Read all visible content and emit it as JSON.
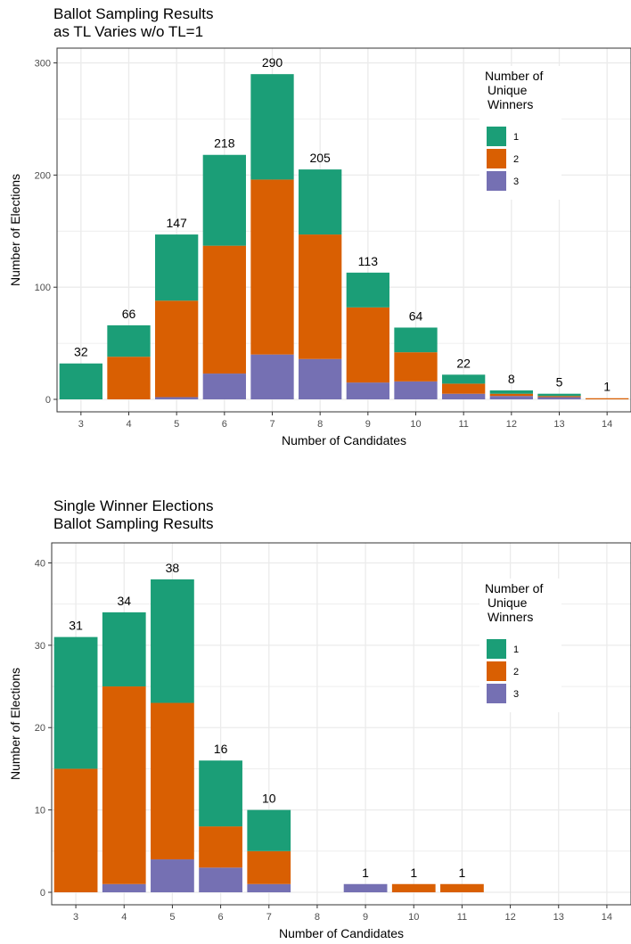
{
  "colors": {
    "series_1": "#1b9e77",
    "series_2": "#d95f02",
    "series_3": "#7570b3",
    "grid": "#ebebeb",
    "panel_border": "#333333"
  },
  "chart_data": [
    {
      "type": "bar",
      "stacked": true,
      "title": [
        "Ballot Sampling Results",
        "as TL Varies w/o TL=1"
      ],
      "xlabel": "Number of Candidates",
      "ylabel": "Number of Elections",
      "categories": [
        "3",
        "4",
        "5",
        "6",
        "7",
        "8",
        "9",
        "10",
        "11",
        "12",
        "13",
        "14"
      ],
      "ylim": [
        0,
        310
      ],
      "yticks": [
        0,
        100,
        200,
        300
      ],
      "grid": true,
      "legend": {
        "title": [
          "Number of",
          "Unique",
          "Winners"
        ],
        "placement": "right"
      },
      "series": [
        {
          "name": "1",
          "color": "#1b9e77",
          "values": [
            32,
            28,
            59,
            81,
            94,
            58,
            31,
            22,
            8,
            3,
            2,
            0
          ]
        },
        {
          "name": "2",
          "color": "#d95f02",
          "values": [
            0,
            38,
            86,
            114,
            156,
            111,
            67,
            26,
            9,
            2,
            1,
            1
          ]
        },
        {
          "name": "3",
          "color": "#7570b3",
          "values": [
            0,
            0,
            2,
            23,
            40,
            36,
            15,
            16,
            5,
            3,
            2,
            0
          ]
        }
      ],
      "totals": [
        32,
        66,
        147,
        218,
        290,
        205,
        113,
        64,
        22,
        8,
        5,
        1
      ]
    },
    {
      "type": "bar",
      "stacked": true,
      "title": [
        "Single Winner Elections",
        "Ballot Sampling Results"
      ],
      "xlabel": "Number of Candidates",
      "ylabel": "Number of Elections",
      "categories": [
        "3",
        "4",
        "5",
        "6",
        "7",
        "8",
        "9",
        "10",
        "11",
        "12",
        "13",
        "14"
      ],
      "ylim": [
        0,
        42
      ],
      "yticks": [
        0,
        10,
        20,
        30,
        40
      ],
      "grid": true,
      "legend": {
        "title": [
          "Number of",
          "Unique",
          "Winners"
        ],
        "placement": "right"
      },
      "series": [
        {
          "name": "1",
          "color": "#1b9e77",
          "values": [
            16,
            9,
            15,
            8,
            5,
            0,
            0,
            0,
            0,
            0,
            0,
            0
          ]
        },
        {
          "name": "2",
          "color": "#d95f02",
          "values": [
            15,
            24,
            19,
            5,
            4,
            0,
            0,
            1,
            1,
            0,
            0,
            0
          ]
        },
        {
          "name": "3",
          "color": "#7570b3",
          "values": [
            0,
            1,
            4,
            3,
            1,
            0,
            1,
            0,
            0,
            0,
            0,
            0
          ]
        }
      ],
      "totals": [
        31,
        34,
        38,
        16,
        10,
        null,
        1,
        1,
        1,
        null,
        null,
        null
      ]
    }
  ]
}
